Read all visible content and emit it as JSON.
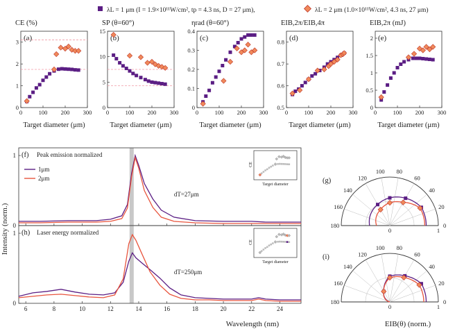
{
  "legend": {
    "purple": {
      "label": "λL = 1 μm (I = 1.9×10¹¹W/cm², tp = 4.3 ns, D = 27 μm),",
      "color": "#5b1e84"
    },
    "red": {
      "label": "λL = 2 μm (1.0×10¹¹W/cm², 4.3 ns, 27 μm)",
      "color": "#e8553e",
      "fill": "#f08a5b"
    }
  },
  "chart_data": [
    {
      "type": "scatter",
      "id": "a",
      "panel_label": "(a)",
      "title": "CE (%)",
      "xlabel": "Target diameter (μm)",
      "xlim": [
        0,
        300
      ],
      "ylim": [
        0,
        3.5
      ],
      "xticks": [
        0,
        100,
        200,
        300
      ],
      "yticks": [
        0,
        1,
        2,
        3
      ],
      "ref_lines": [
        1.75,
        3.1
      ],
      "series": [
        {
          "name": "1 μm",
          "x": [
            27,
            40,
            55,
            70,
            85,
            100,
            115,
            130,
            150,
            170,
            185,
            200,
            215,
            230,
            245,
            260
          ],
          "y": [
            0.28,
            0.5,
            0.7,
            0.9,
            1.05,
            1.25,
            1.4,
            1.55,
            1.68,
            1.76,
            1.78,
            1.77,
            1.76,
            1.75,
            1.73,
            1.72
          ]
        },
        {
          "name": "2 μm",
          "x": [
            27,
            150,
            160,
            180,
            200,
            215,
            230,
            245,
            260
          ],
          "y": [
            0.3,
            1.75,
            2.45,
            2.75,
            2.7,
            2.8,
            2.65,
            2.6,
            2.6
          ]
        }
      ]
    },
    {
      "type": "scatter",
      "id": "b",
      "panel_label": "(b)",
      "title": "SP (θ=60°)",
      "xlabel": "Target diameter (μm)",
      "xlim": [
        0,
        300
      ],
      "ylim": [
        0,
        15
      ],
      "xticks": [
        0,
        100,
        200,
        300
      ],
      "yticks": [
        0,
        5,
        10,
        15
      ],
      "ref_lines": [
        4.3,
        7.5
      ],
      "series": [
        {
          "name": "1 μm",
          "x": [
            27,
            40,
            55,
            70,
            85,
            100,
            115,
            130,
            150,
            170,
            185,
            200,
            215,
            230,
            245,
            260
          ],
          "y": [
            10.3,
            9.6,
            8.8,
            8.2,
            7.7,
            7.2,
            6.7,
            6.3,
            5.9,
            5.5,
            5.2,
            5.0,
            4.9,
            4.8,
            4.7,
            4.6
          ]
        },
        {
          "name": "2 μm",
          "x": [
            27,
            100,
            150,
            180,
            200,
            215,
            230,
            245,
            260
          ],
          "y": [
            14.3,
            10.2,
            9.9,
            8.8,
            9.0,
            8.5,
            8.2,
            8.0,
            7.8
          ]
        }
      ]
    },
    {
      "type": "scatter",
      "id": "c",
      "panel_label": "(c)",
      "title": "ηrad (θ=60°)",
      "xlabel": "Target diameter (μm)",
      "xlim": [
        0,
        300
      ],
      "ylim": [
        0,
        0.4
      ],
      "xticks": [
        0,
        100,
        200,
        300
      ],
      "yticks": [
        0,
        0.1,
        0.2,
        0.3,
        0.4
      ],
      "series": [
        {
          "name": "1 μm",
          "x": [
            27,
            40,
            55,
            70,
            85,
            100,
            115,
            130,
            150,
            170,
            185,
            200,
            215,
            230,
            245,
            260
          ],
          "y": [
            0.03,
            0.06,
            0.09,
            0.13,
            0.16,
            0.19,
            0.22,
            0.25,
            0.29,
            0.32,
            0.34,
            0.36,
            0.37,
            0.38,
            0.38,
            0.38
          ]
        },
        {
          "name": "2 μm",
          "x": [
            27,
            120,
            150,
            180,
            200,
            215,
            230,
            245,
            260
          ],
          "y": [
            0.02,
            0.14,
            0.24,
            0.31,
            0.29,
            0.3,
            0.33,
            0.29,
            0.3
          ]
        }
      ]
    },
    {
      "type": "scatter",
      "id": "d",
      "panel_label": "(d)",
      "title": "EIB,2π/EIB,4π",
      "xlabel": "Target diameter (μm)",
      "xlim": [
        0,
        300
      ],
      "ylim": [
        0.5,
        0.85
      ],
      "xticks": [
        0,
        100,
        200,
        300
      ],
      "yticks": [
        0.5,
        0.6,
        0.7,
        0.8
      ],
      "series": [
        {
          "name": "1 μm",
          "x": [
            27,
            40,
            55,
            70,
            85,
            100,
            115,
            130,
            150,
            170,
            185,
            200,
            215,
            230,
            245,
            260
          ],
          "y": [
            0.56,
            0.575,
            0.585,
            0.6,
            0.615,
            0.63,
            0.645,
            0.655,
            0.67,
            0.685,
            0.7,
            0.71,
            0.72,
            0.73,
            0.74,
            0.75
          ]
        },
        {
          "name": "2 μm",
          "x": [
            27,
            60,
            100,
            140,
            170,
            190,
            200,
            215,
            230,
            245,
            255,
            260
          ],
          "y": [
            0.565,
            0.58,
            0.63,
            0.67,
            0.675,
            0.69,
            0.7,
            0.71,
            0.72,
            0.74,
            0.745,
            0.75
          ]
        }
      ]
    },
    {
      "type": "scatter",
      "id": "e",
      "panel_label": "(e)",
      "title": "EIB,2π (mJ)",
      "xlabel": "Target diameter (μm)",
      "xlim": [
        0,
        300
      ],
      "ylim": [
        0,
        2.2
      ],
      "xticks": [
        0,
        100,
        200,
        300
      ],
      "yticks": [
        0,
        0.5,
        1,
        1.5,
        2
      ],
      "series": [
        {
          "name": "1 μm",
          "x": [
            27,
            40,
            55,
            70,
            85,
            100,
            115,
            130,
            150,
            170,
            185,
            200,
            215,
            230,
            245,
            260
          ],
          "y": [
            0.22,
            0.45,
            0.65,
            0.85,
            1.0,
            1.15,
            1.25,
            1.32,
            1.38,
            1.42,
            1.42,
            1.42,
            1.41,
            1.4,
            1.39,
            1.38
          ]
        },
        {
          "name": "2 μm",
          "x": [
            27,
            150,
            175,
            200,
            215,
            230,
            245,
            260
          ],
          "y": [
            0.3,
            1.45,
            1.55,
            1.7,
            1.65,
            1.75,
            1.68,
            1.75
          ]
        }
      ]
    },
    {
      "type": "line",
      "id": "f",
      "panel_label": "(f)",
      "note": "Peak emission normalized",
      "annotation": "dT=27μm",
      "xlim": [
        5.5,
        25.5
      ],
      "ylim": [
        0,
        1.05
      ],
      "xticks": [
        6,
        8,
        10,
        12,
        14,
        16,
        18,
        20,
        22,
        24
      ],
      "yticks": [
        0,
        1
      ],
      "highlight_x": 13.5,
      "inset": {
        "ylabel": "CE",
        "xlabel": "Target diameter"
      },
      "series": [
        {
          "name": "1μm",
          "x": [
            5.5,
            7,
            9,
            11,
            12,
            12.8,
            13.2,
            13.5,
            13.75,
            14,
            14.4,
            15,
            15.6,
            16.5,
            18,
            20,
            22,
            23,
            24,
            25.5
          ],
          "y": [
            0.06,
            0.06,
            0.07,
            0.07,
            0.09,
            0.14,
            0.3,
            0.75,
            1.0,
            0.86,
            0.6,
            0.38,
            0.22,
            0.12,
            0.07,
            0.06,
            0.06,
            0.05,
            0.05,
            0.05
          ]
        },
        {
          "name": "2μm",
          "x": [
            5.5,
            7,
            9,
            11,
            12,
            12.8,
            13.2,
            13.5,
            13.75,
            14,
            14.4,
            15,
            15.6,
            16.5,
            18,
            20,
            22,
            23,
            24,
            25.5
          ],
          "y": [
            0.04,
            0.04,
            0.05,
            0.05,
            0.06,
            0.1,
            0.25,
            0.7,
            0.97,
            0.82,
            0.5,
            0.26,
            0.12,
            0.06,
            0.04,
            0.03,
            0.03,
            0.03,
            0.03,
            0.03
          ]
        }
      ]
    },
    {
      "type": "line",
      "id": "h",
      "panel_label": "(h)",
      "note": "Laser energy normalized",
      "annotation": "dT=250μm",
      "xlim": [
        5.5,
        25.5
      ],
      "ylim": [
        0,
        1.05
      ],
      "xticks": [
        6,
        8,
        10,
        12,
        14,
        16,
        18,
        20,
        22,
        24
      ],
      "yticks": [
        0,
        1
      ],
      "highlight_x": 13.5,
      "inset": {
        "ylabel": "CE",
        "xlabel": "Target diameter"
      },
      "series": [
        {
          "name": "1μm",
          "x": [
            5.5,
            6.5,
            7.5,
            8.5,
            9.5,
            10.5,
            11.5,
            12.3,
            12.9,
            13.3,
            13.55,
            13.8,
            14.2,
            14.8,
            15.5,
            16.2,
            17,
            18,
            19,
            20,
            21,
            22,
            22.5,
            23,
            24,
            25.5
          ],
          "y": [
            0.1,
            0.15,
            0.17,
            0.2,
            0.16,
            0.13,
            0.12,
            0.15,
            0.3,
            0.6,
            0.72,
            0.65,
            0.58,
            0.48,
            0.36,
            0.22,
            0.12,
            0.08,
            0.07,
            0.06,
            0.06,
            0.06,
            0.08,
            0.06,
            0.05,
            0.05
          ]
        },
        {
          "name": "2μm",
          "x": [
            5.5,
            6.5,
            7.5,
            8.5,
            9.5,
            10.5,
            11.5,
            12.3,
            12.9,
            13.3,
            13.55,
            13.8,
            14.2,
            14.8,
            15.5,
            16.2,
            17,
            18,
            19,
            20,
            21,
            22,
            22.5,
            23,
            24,
            25.5
          ],
          "y": [
            0.08,
            0.1,
            0.12,
            0.13,
            0.11,
            0.09,
            0.08,
            0.12,
            0.35,
            0.85,
            0.98,
            0.9,
            0.72,
            0.45,
            0.26,
            0.13,
            0.07,
            0.05,
            0.05,
            0.04,
            0.04,
            0.04,
            0.06,
            0.04,
            0.03,
            0.03
          ]
        }
      ]
    },
    {
      "type": "polar",
      "id": "g",
      "panel_label": "(g)",
      "angle_ticks": [
        0,
        20,
        40,
        60,
        80,
        100,
        120,
        140,
        160,
        180
      ],
      "radial_ticks": [
        0,
        1
      ],
      "series": [
        {
          "name": "1 μm",
          "theta": [
            30,
            60,
            90,
            120
          ],
          "r": [
            0.75,
            0.65,
            0.57,
            0.5
          ]
        },
        {
          "name": "2 μm",
          "theta": [
            30,
            60,
            90,
            120
          ],
          "r": [
            0.72,
            0.55,
            0.47,
            0.38
          ]
        }
      ]
    },
    {
      "type": "polar",
      "id": "i",
      "panel_label": "(i)",
      "angle_ticks": [
        0,
        20,
        40,
        60,
        80,
        100,
        120,
        140,
        160,
        180
      ],
      "radial_ticks": [
        0,
        1
      ],
      "series": [
        {
          "name": "1 μm",
          "theta": [
            30,
            60,
            90,
            120
          ],
          "r": [
            0.75,
            0.62,
            0.53,
            0.25
          ]
        },
        {
          "name": "2 μm",
          "theta": [
            30,
            60,
            90,
            120
          ],
          "r": [
            0.7,
            0.58,
            0.5,
            0.25
          ]
        }
      ]
    }
  ],
  "axis_titles": {
    "top_x": "Target diameter (μm)",
    "spectra_y": "Intensity (norm.)",
    "spectra_x": "Wavelength (nm)",
    "polar_x": "EIB(θ) (norm.)"
  }
}
